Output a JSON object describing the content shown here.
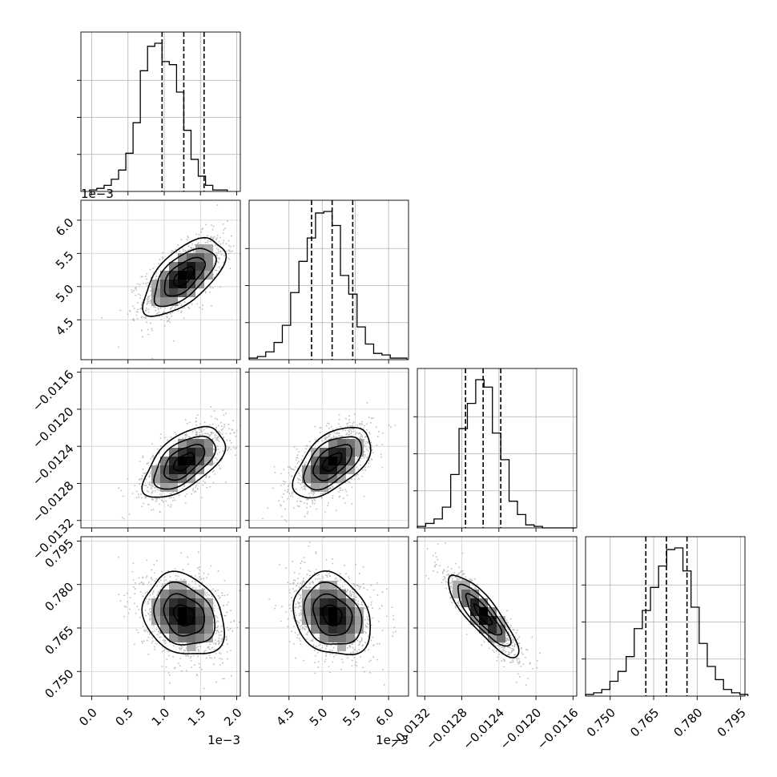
{
  "chart_data": {
    "type": "corner",
    "grid": true,
    "parameters": [
      {
        "range": [
          -0.00015,
          0.00205
        ],
        "offset_label": "1e−3",
        "ticks": [
          0.0,
          0.0005,
          0.001,
          0.0015,
          0.002
        ],
        "tick_labels": [
          "0.0",
          "0.5",
          "1.0",
          "1.5",
          "2.0"
        ],
        "quantiles": [
          0.00097,
          0.00127,
          0.00155
        ],
        "hist": {
          "edges_start": -3e-05,
          "bin_width": 0.0001,
          "counts": [
            1,
            2,
            4,
            8,
            14,
            25,
            45,
            79,
            95,
            97,
            85,
            83,
            65,
            40,
            21,
            10,
            4,
            1,
            1
          ]
        }
      },
      {
        "range": [
          0.0039,
          0.0063
        ],
        "offset_label": "1e−3",
        "ticks": [
          0.0045,
          0.005,
          0.0055,
          0.006
        ],
        "tick_labels": [
          "4.5",
          "5.0",
          "5.5",
          "6.0"
        ],
        "quantiles": [
          0.00484,
          0.00515,
          0.00546
        ],
        "hist": {
          "edges_start": 0.0039,
          "bin_width": 0.000125,
          "counts": [
            1,
            2,
            5,
            11,
            22,
            43,
            63,
            78,
            94,
            95,
            86,
            54,
            42,
            21,
            10,
            4,
            3,
            1,
            1
          ]
        }
      },
      {
        "range": [
          -0.01328,
          -0.01156
        ],
        "offset_label": "",
        "ticks": [
          -0.0132,
          -0.0128,
          -0.0124,
          -0.012,
          -0.0116
        ],
        "tick_labels": [
          "−0.0132",
          "−0.0128",
          "−0.0124",
          "−0.0120",
          "−0.0116"
        ],
        "quantiles": [
          -0.01276,
          -0.01257,
          -0.01238
        ],
        "hist": {
          "edges_start": -0.01328,
          "bin_width": 9e-05,
          "counts": [
            1,
            3,
            6,
            14,
            36,
            67,
            84,
            100,
            95,
            64,
            46,
            18,
            9,
            2,
            1,
            0,
            0,
            0,
            0
          ]
        }
      },
      {
        "range": [
          0.7415,
          0.7965
        ],
        "offset_label": "",
        "ticks": [
          0.75,
          0.765,
          0.78,
          0.795
        ],
        "tick_labels": [
          "0.750",
          "0.765",
          "0.780",
          "0.795"
        ],
        "quantiles": [
          0.7623,
          0.7694,
          0.7765
        ],
        "hist": {
          "edges_start": 0.7415,
          "bin_width": 0.0028,
          "counts": [
            1,
            2,
            4,
            9,
            15,
            24,
            41,
            52,
            66,
            79,
            89,
            90,
            76,
            54,
            32,
            18,
            10,
            4,
            2,
            1
          ]
        }
      }
    ],
    "pairs": [
      {
        "row": 1,
        "col": 0,
        "mean": [
          0.00127,
          0.00515
        ],
        "sd": [
          0.00028,
          0.00029
        ],
        "rho": 0.62
      },
      {
        "row": 2,
        "col": 0,
        "mean": [
          0.00127,
          -0.01257
        ],
        "sd": [
          0.00028,
          0.00019
        ],
        "rho": 0.58
      },
      {
        "row": 2,
        "col": 1,
        "mean": [
          0.00515,
          -0.01257
        ],
        "sd": [
          0.00029,
          0.00019
        ],
        "rho": 0.55
      },
      {
        "row": 3,
        "col": 0,
        "mean": [
          0.00127,
          0.7694
        ],
        "sd": [
          0.00028,
          0.0071
        ],
        "rho": -0.22
      },
      {
        "row": 3,
        "col": 1,
        "mean": [
          0.00515,
          0.7694
        ],
        "sd": [
          0.00029,
          0.0071
        ],
        "rho": -0.22
      },
      {
        "row": 3,
        "col": 2,
        "mean": [
          -0.01257,
          0.7694
        ],
        "sd": [
          0.00019,
          0.0071
        ],
        "rho": -0.85
      }
    ],
    "contour_levels_sigma": [
      0.5,
      1.0,
      1.5,
      2.0
    ]
  }
}
